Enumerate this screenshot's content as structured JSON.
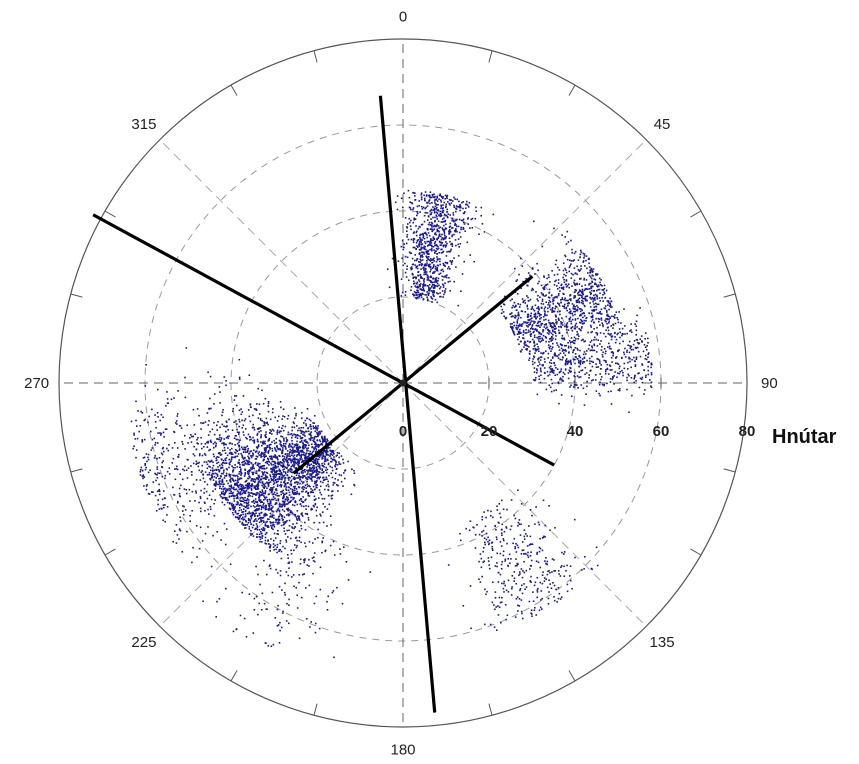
{
  "chart_data": {
    "type": "scatter",
    "projection": "polar",
    "title": "",
    "angle_direction": "clockwise",
    "angle_zero": "top",
    "angle_ticks": [
      0,
      45,
      90,
      135,
      180,
      225,
      270,
      315
    ],
    "angle_tick_labels": [
      "0",
      "45",
      "90",
      "135",
      "180",
      "225",
      "270",
      "315"
    ],
    "radial_range": [
      0,
      80
    ],
    "radial_ticks": [
      0,
      20,
      40,
      60,
      80
    ],
    "radial_tick_labels": [
      "0",
      "20",
      "40",
      "60",
      "80"
    ],
    "radial_unit_label": "Hnútar",
    "grid": true,
    "point_color": "#1a1a8c",
    "line_color": "#000000",
    "clusters": [
      {
        "theta_center": 12,
        "theta_spread": 6,
        "r_min": 20,
        "r_max": 45,
        "count": 900
      },
      {
        "theta_center": 65,
        "theta_spread": 7,
        "r_min": 28,
        "r_max": 52,
        "count": 1000
      },
      {
        "theta_center": 83,
        "theta_spread": 5,
        "r_min": 30,
        "r_max": 58,
        "count": 500
      },
      {
        "theta_center": 147,
        "theta_spread": 7,
        "r_min": 35,
        "r_max": 62,
        "count": 350
      },
      {
        "theta_center": 233,
        "theta_spread": 9,
        "r_min": 22,
        "r_max": 50,
        "count": 2200
      },
      {
        "theta_center": 248,
        "theta_spread": 10,
        "r_min": 30,
        "r_max": 65,
        "count": 700
      },
      {
        "theta_center": 210,
        "theta_spread": 6,
        "r_min": 40,
        "r_max": 70,
        "count": 150
      }
    ],
    "reference_lines": [
      {
        "theta_a": 355.5,
        "r_a": 67,
        "theta_b": 174.5,
        "r_b": 77
      },
      {
        "theta_a": 298.5,
        "r_a": 82,
        "theta_b": 118.5,
        "r_b": 40
      },
      {
        "theta_a": 50.5,
        "r_a": 39,
        "theta_b": 230.5,
        "r_b": 33
      }
    ]
  }
}
